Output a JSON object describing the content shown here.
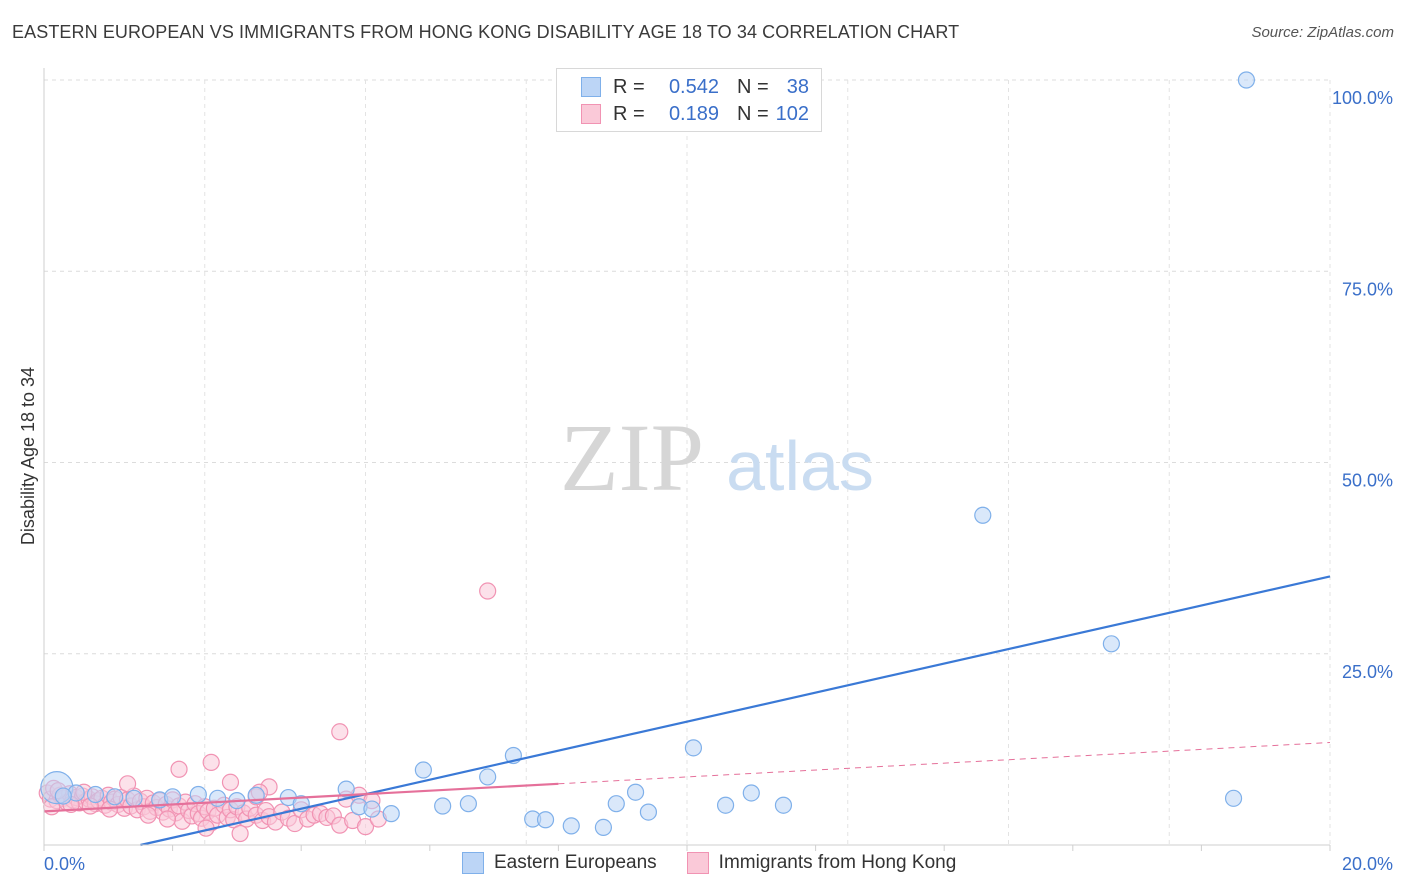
{
  "title": "EASTERN EUROPEAN VS IMMIGRANTS FROM HONG KONG DISABILITY AGE 18 TO 34 CORRELATION CHART",
  "source": "Source: ZipAtlas.com",
  "watermark": {
    "zip": "ZIP",
    "atlas": "atlas"
  },
  "legend_top": {
    "rows": [
      {
        "r_label": "R =",
        "r_value": "0.542",
        "n_label": "N =",
        "n_value": "38",
        "color": "#7fb0ea",
        "fill": "#bcd5f6"
      },
      {
        "r_label": "R =",
        "r_value": "0.189",
        "n_label": "N =",
        "n_value": "102",
        "color": "#f193b3",
        "fill": "#fac9d8"
      }
    ]
  },
  "legend_bottom": [
    {
      "label": "Eastern Europeans",
      "color": "#7fb0ea",
      "fill": "#bcd5f6"
    },
    {
      "label": "Immigrants from Hong Kong",
      "color": "#f193b3",
      "fill": "#fac9d8"
    }
  ],
  "chart_data": {
    "type": "scatter",
    "title": "EASTERN EUROPEAN VS IMMIGRANTS FROM HONG KONG DISABILITY AGE 18 TO 34 CORRELATION CHART",
    "xlabel": "",
    "ylabel": "Disability Age 18 to 34",
    "xlim": [
      0,
      20
    ],
    "ylim": [
      0,
      100
    ],
    "x_tick_labels": [
      "0.0%",
      "20.0%"
    ],
    "y_tick_labels": [
      "25.0%",
      "50.0%",
      "75.0%",
      "100.0%"
    ],
    "y_ticks": [
      25,
      50,
      75,
      100
    ],
    "grid": true,
    "series": [
      {
        "name": "Eastern Europeans",
        "color": "#3a79d6",
        "point_fill": "#bcd5f6",
        "point_stroke": "#7fb0ea",
        "trend": {
          "x": [
            1.5,
            20
          ],
          "y": [
            0,
            35.1
          ]
        },
        "points": [
          [
            0.2,
            7.5
          ],
          [
            0.5,
            6.8
          ],
          [
            0.3,
            6.4
          ],
          [
            0.8,
            6.6
          ],
          [
            1.1,
            6.3
          ],
          [
            1.4,
            6.1
          ],
          [
            1.8,
            5.9
          ],
          [
            2.0,
            6.3
          ],
          [
            2.4,
            6.6
          ],
          [
            2.7,
            6.1
          ],
          [
            3.0,
            5.8
          ],
          [
            3.3,
            6.5
          ],
          [
            3.8,
            6.2
          ],
          [
            4.0,
            5.4
          ],
          [
            4.7,
            7.3
          ],
          [
            4.9,
            5.0
          ],
          [
            5.1,
            4.7
          ],
          [
            5.4,
            4.1
          ],
          [
            5.9,
            9.8
          ],
          [
            6.2,
            5.1
          ],
          [
            6.6,
            5.4
          ],
          [
            6.9,
            8.9
          ],
          [
            7.3,
            11.7
          ],
          [
            7.6,
            3.4
          ],
          [
            7.8,
            3.3
          ],
          [
            8.2,
            2.5
          ],
          [
            8.7,
            2.3
          ],
          [
            8.9,
            5.4
          ],
          [
            9.2,
            6.9
          ],
          [
            9.4,
            4.3
          ],
          [
            10.1,
            12.7
          ],
          [
            10.6,
            5.2
          ],
          [
            11.0,
            6.8
          ],
          [
            11.5,
            5.2
          ],
          [
            14.6,
            43.1
          ],
          [
            16.6,
            26.3
          ],
          [
            18.5,
            6.1
          ],
          [
            18.7,
            100
          ]
        ]
      },
      {
        "name": "Immigrants from Hong Kong",
        "color": "#e5709a",
        "point_fill": "#fac9d8",
        "point_stroke": "#f193b3",
        "trend_solid": {
          "x": [
            0,
            8
          ],
          "y": [
            4.4,
            8.0
          ]
        },
        "trend_dashed": {
          "x": [
            8,
            20
          ],
          "y": [
            8.0,
            13.4
          ]
        },
        "points": [
          [
            0.05,
            6.8
          ],
          [
            0.1,
            6.0
          ],
          [
            0.15,
            7.4
          ],
          [
            0.2,
            5.8
          ],
          [
            0.25,
            6.5
          ],
          [
            0.3,
            6.1
          ],
          [
            0.35,
            5.6
          ],
          [
            0.4,
            6.7
          ],
          [
            0.45,
            5.9
          ],
          [
            0.5,
            6.2
          ],
          [
            0.55,
            5.5
          ],
          [
            0.6,
            6.4
          ],
          [
            0.65,
            5.7
          ],
          [
            0.7,
            6.0
          ],
          [
            0.75,
            6.3
          ],
          [
            0.8,
            5.4
          ],
          [
            0.85,
            5.8
          ],
          [
            0.9,
            6.1
          ],
          [
            0.95,
            5.2
          ],
          [
            1.0,
            6.5
          ],
          [
            1.05,
            5.6
          ],
          [
            1.1,
            6.0
          ],
          [
            1.15,
            5.3
          ],
          [
            1.2,
            6.2
          ],
          [
            1.25,
            4.8
          ],
          [
            1.3,
            5.9
          ],
          [
            1.35,
            5.1
          ],
          [
            1.4,
            6.4
          ],
          [
            1.45,
            4.6
          ],
          [
            1.5,
            5.7
          ],
          [
            1.55,
            5.0
          ],
          [
            1.6,
            6.1
          ],
          [
            1.65,
            4.4
          ],
          [
            1.7,
            5.5
          ],
          [
            1.75,
            4.9
          ],
          [
            1.8,
            5.8
          ],
          [
            1.85,
            4.3
          ],
          [
            1.9,
            5.3
          ],
          [
            1.95,
            4.7
          ],
          [
            2.0,
            5.9
          ],
          [
            2.05,
            4.2
          ],
          [
            2.1,
            5.1
          ],
          [
            2.15,
            3.1
          ],
          [
            2.2,
            5.6
          ],
          [
            2.25,
            4.5
          ],
          [
            2.3,
            3.8
          ],
          [
            2.35,
            5.4
          ],
          [
            2.4,
            4.1
          ],
          [
            2.45,
            3.5
          ],
          [
            2.5,
            5.0
          ],
          [
            2.55,
            4.4
          ],
          [
            2.6,
            2.9
          ],
          [
            2.65,
            4.8
          ],
          [
            2.7,
            3.9
          ],
          [
            2.8,
            5.2
          ],
          [
            2.85,
            3.6
          ],
          [
            2.9,
            4.6
          ],
          [
            2.95,
            3.3
          ],
          [
            3.0,
            5.0
          ],
          [
            3.1,
            4.2
          ],
          [
            3.15,
            3.4
          ],
          [
            3.2,
            4.8
          ],
          [
            3.3,
            3.9
          ],
          [
            3.4,
            3.2
          ],
          [
            3.45,
            4.5
          ],
          [
            3.5,
            3.7
          ],
          [
            3.6,
            3.0
          ],
          [
            3.7,
            4.3
          ],
          [
            3.8,
            3.5
          ],
          [
            3.9,
            2.8
          ],
          [
            4.0,
            4.6
          ],
          [
            4.1,
            3.4
          ],
          [
            4.2,
            3.9
          ],
          [
            4.3,
            4.1
          ],
          [
            4.4,
            3.6
          ],
          [
            4.5,
            3.8
          ],
          [
            4.6,
            2.6
          ],
          [
            4.7,
            6.0
          ],
          [
            4.8,
            3.2
          ],
          [
            4.9,
            6.5
          ],
          [
            5.0,
            2.4
          ],
          [
            5.1,
            5.8
          ],
          [
            5.2,
            3.4
          ],
          [
            1.3,
            8.0
          ],
          [
            2.1,
            9.9
          ],
          [
            2.6,
            10.8
          ],
          [
            2.9,
            8.2
          ],
          [
            3.3,
            6.3
          ],
          [
            3.5,
            7.6
          ],
          [
            4.6,
            14.8
          ],
          [
            6.9,
            33.2
          ],
          [
            0.12,
            5.0
          ],
          [
            0.22,
            7.1
          ],
          [
            0.42,
            5.3
          ],
          [
            0.62,
            6.9
          ],
          [
            0.72,
            5.1
          ],
          [
            1.02,
            4.7
          ],
          [
            1.62,
            3.9
          ],
          [
            2.52,
            2.2
          ],
          [
            3.05,
            1.5
          ],
          [
            3.35,
            6.9
          ],
          [
            1.92,
            3.4
          ]
        ]
      }
    ]
  }
}
